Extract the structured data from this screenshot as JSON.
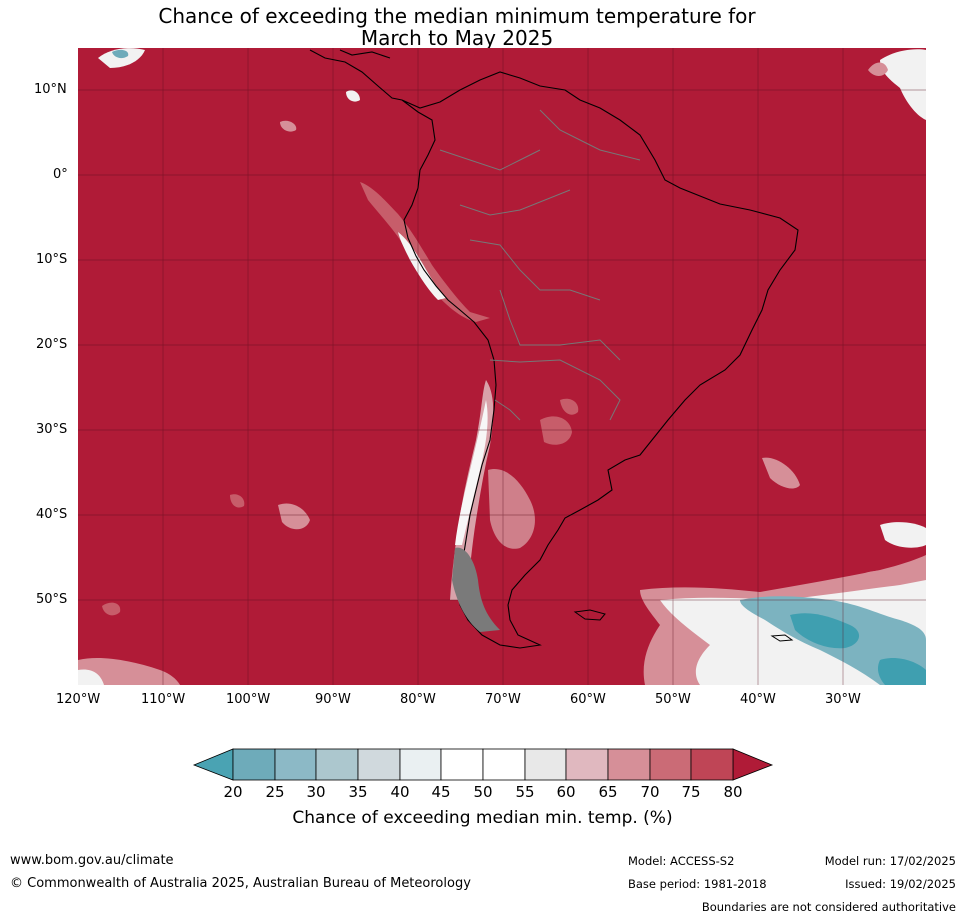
{
  "title_line1": "Chance of exceeding the median minimum temperature for",
  "title_line2": "March to May 2025",
  "lat_labels": [
    "10°N",
    "0°",
    "10°S",
    "20°S",
    "30°S",
    "40°S",
    "50°S"
  ],
  "lon_labels": [
    "120°W",
    "110°W",
    "100°W",
    "90°W",
    "80°W",
    "70°W",
    "60°W",
    "50°W",
    "40°W",
    "30°W"
  ],
  "colorbar": {
    "ticks": [
      "20",
      "25",
      "30",
      "35",
      "40",
      "45",
      "50",
      "55",
      "60",
      "65",
      "70",
      "75",
      "80"
    ],
    "colors": [
      "#4aa3b3",
      "#6eabba",
      "#8cb9c6",
      "#acc7ce",
      "#d0d9dd",
      "#eaf0f2",
      "#ffffff",
      "#ffffff",
      "#e8e8e8",
      "#e0b8bf",
      "#d68f98",
      "#cb6b76",
      "#bf4556",
      "#b01b37"
    ],
    "label": "Chance of exceeding median min. temp. (%)"
  },
  "footer": {
    "website": "www.bom.gov.au/climate",
    "copyright": "© Commonwealth of Australia 2025, Australian Bureau of Meteorology",
    "model": "Model: ACCESS-S2",
    "base_period": "Base period: 1981-2018",
    "model_run": "Model run: 17/02/2025",
    "issued": "Issued: 19/02/2025",
    "disclaimer": "Boundaries are not considered authoritative"
  }
}
